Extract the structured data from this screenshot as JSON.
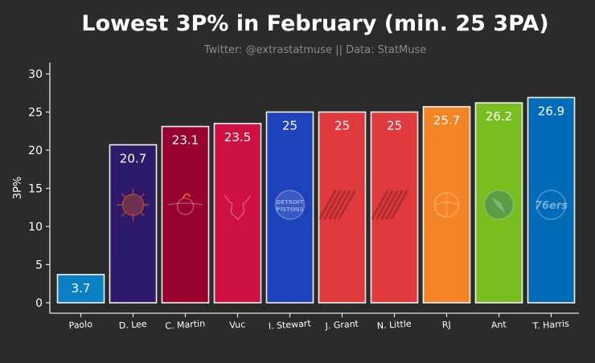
{
  "chart_data": {
    "type": "bar",
    "title": "Lowest 3P% in February (min. 25 3PA)",
    "subtitle": "Twitter: @extrastatmuse || Data: StatMuse",
    "xlabel": "",
    "ylabel": "3P%",
    "ylim": [
      0,
      31
    ],
    "yticks": [
      0,
      5,
      10,
      15,
      20,
      25,
      30
    ],
    "grid": false,
    "categories": [
      "Paolo",
      "D. Lee",
      "C. Martin",
      "Vuc",
      "I. Stewart",
      "J. Grant",
      "N. Little",
      "RJ",
      "Ant",
      "T. Harris"
    ],
    "values": [
      3.7,
      20.7,
      23.1,
      23.5,
      25,
      25,
      25,
      25.7,
      26.2,
      26.9
    ],
    "value_labels": [
      "3.7",
      "20.7",
      "23.1",
      "23.5",
      "25",
      "25",
      "25",
      "25.7",
      "26.2",
      "26.9"
    ],
    "bar_colors": [
      "#0a7fc4",
      "#2d1a6b",
      "#98002e",
      "#ce1141",
      "#1d42ba",
      "#e03a3e",
      "#e03a3e",
      "#f58426",
      "#78be20",
      "#006bb6"
    ],
    "team_logos": [
      "none",
      "suns-logo",
      "heat-logo",
      "bulls-logo",
      "pistons-logo",
      "blazers-logo",
      "blazers-logo",
      "knicks-logo",
      "timberwolves-logo",
      "sixers-logo"
    ],
    "logo_text": {
      "pistons": [
        "DETROIT",
        "PISTONS"
      ],
      "sixers": "76ers"
    }
  }
}
